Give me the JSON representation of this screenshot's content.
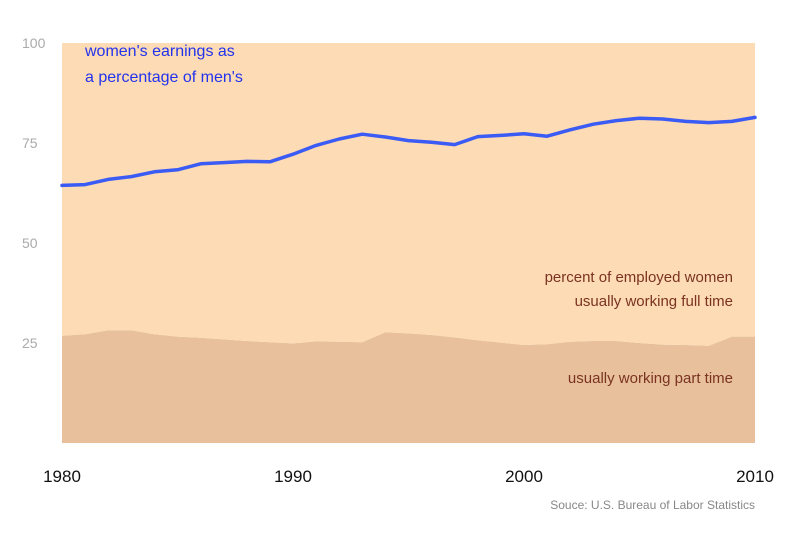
{
  "chart_data": {
    "type": "area",
    "x": [
      1980,
      1981,
      1982,
      1983,
      1984,
      1985,
      1986,
      1987,
      1988,
      1989,
      1990,
      1991,
      1992,
      1993,
      1994,
      1995,
      1996,
      1997,
      1998,
      1999,
      2000,
      2001,
      2002,
      2003,
      2004,
      2005,
      2006,
      2007,
      2008,
      2009,
      2010
    ],
    "xticks": [
      "1980",
      "1990",
      "2000",
      "2010"
    ],
    "yticks": [
      "100",
      "75",
      "50",
      "25"
    ],
    "ylim": [
      0,
      100
    ],
    "grid": false,
    "series": [
      {
        "name": "usually working part time",
        "kind": "area",
        "color": "#e8c09c",
        "values": [
          26.8,
          27.2,
          28.2,
          28.2,
          27.2,
          26.6,
          26.3,
          25.9,
          25.5,
          25.2,
          24.9,
          25.4,
          25.3,
          25.2,
          27.7,
          27.4,
          27.0,
          26.4,
          25.7,
          25.1,
          24.5,
          24.7,
          25.3,
          25.5,
          25.5,
          25.0,
          24.6,
          24.5,
          24.3,
          26.6,
          26.6
        ]
      },
      {
        "name": "percent of employed women usually working full time",
        "kind": "area",
        "color": "#fddbb4",
        "values": [
          73.2,
          72.8,
          71.8,
          71.8,
          72.8,
          73.4,
          73.7,
          74.1,
          74.5,
          74.8,
          75.1,
          74.6,
          74.7,
          74.8,
          72.3,
          72.6,
          73.0,
          73.6,
          74.3,
          74.9,
          75.5,
          75.3,
          74.7,
          74.5,
          74.5,
          75.0,
          75.4,
          75.5,
          75.7,
          73.4,
          73.4
        ]
      },
      {
        "name": "women's earnings as a percentage of men's",
        "kind": "line",
        "color": "#3b5bf5",
        "values": [
          64.4,
          64.6,
          65.9,
          66.6,
          67.8,
          68.3,
          69.8,
          70.1,
          70.4,
          70.3,
          72.2,
          74.4,
          76.0,
          77.2,
          76.5,
          75.6,
          75.2,
          74.6,
          76.6,
          76.9,
          77.3,
          76.7,
          78.3,
          79.7,
          80.6,
          81.2,
          81.0,
          80.4,
          80.1,
          80.4,
          81.4
        ]
      }
    ],
    "labels": {
      "earnings_line1": "women's earnings as",
      "earnings_line2": "a percentage of men's",
      "fulltime_line1": "percent of employed women",
      "fulltime_line2": "usually working full time",
      "parttime": "usually working part time"
    },
    "source": "Souce: U.S. Bureau of Labor Statistics"
  }
}
